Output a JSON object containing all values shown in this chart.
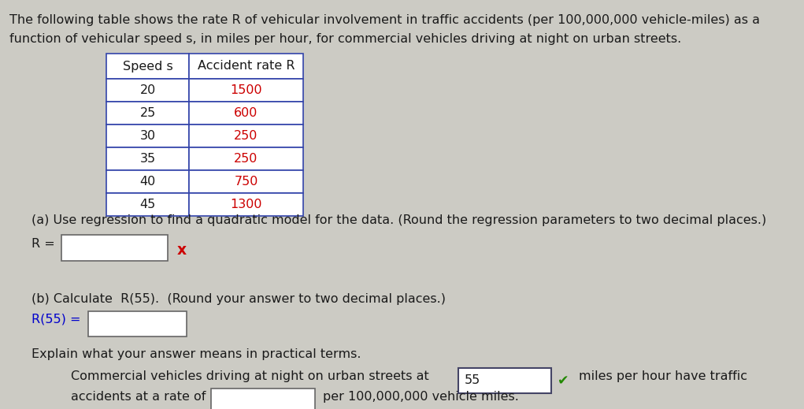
{
  "bg_color": "#cccbc4",
  "text_color": "#1a1a1a",
  "red_color": "#cc0000",
  "blue_color": "#0000cc",
  "table_border_color": "#3344aa",
  "white": "#ffffff",
  "title_line1": "The following table shows the rate R of vehicular involvement in traffic accidents (per 100,000,000 vehicle-miles) as a",
  "title_line2": "function of vehicular speed s, in miles per hour, for commercial vehicles driving at night on urban streets.",
  "table_header": [
    "Speed s",
    "Accident rate R"
  ],
  "table_data": [
    [
      20,
      1500
    ],
    [
      25,
      600
    ],
    [
      30,
      250
    ],
    [
      35,
      250
    ],
    [
      40,
      750
    ],
    [
      45,
      1300
    ]
  ],
  "part_a_label": "(a) Use regression to find a quadratic model for the data. (Round the regression parameters to two decimal places.)",
  "r_equals": "R =",
  "times_x": "x",
  "part_b_label": "(b) Calculate  R(55).  (Round your answer to two decimal places.)",
  "r55_label": "R(55) =",
  "explain_label": "Explain what your answer means in practical terms.",
  "practical_line1": "Commercial vehicles driving at night on urban streets at",
  "practical_55": "55",
  "practical_mph": "miles per hour have traffic",
  "practical_line2": "accidents at a rate of",
  "practical_per": "per 100,000,000 vehicle miles.",
  "font_size": 11.5,
  "font_size_small": 10.5
}
